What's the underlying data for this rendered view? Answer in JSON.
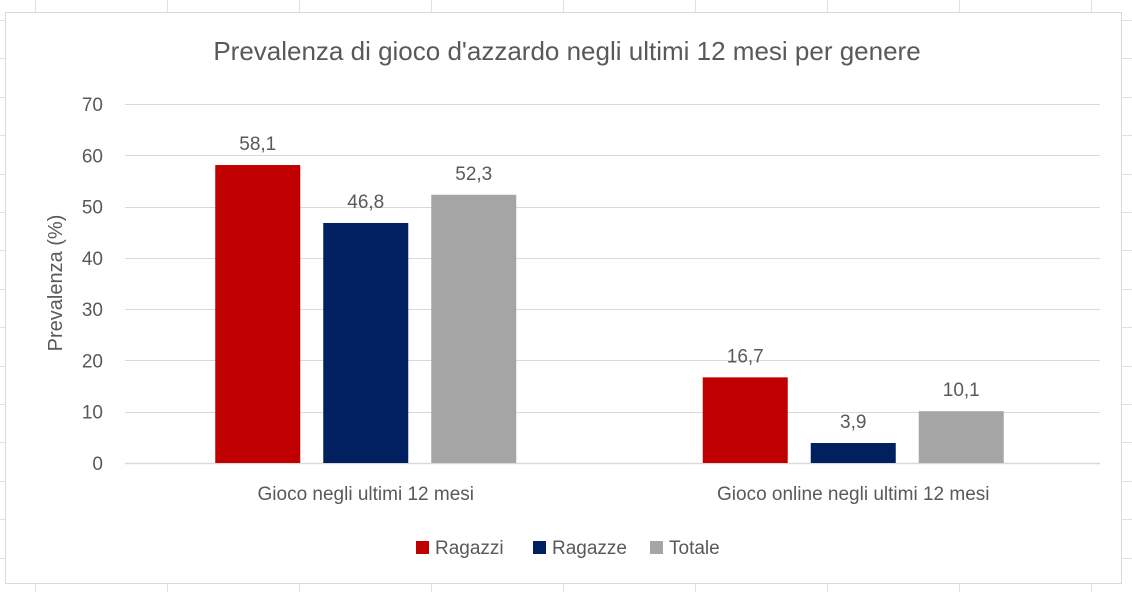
{
  "chart_data": {
    "type": "bar",
    "title": "Prevalenza di gioco d'azzardo negli ultimi 12 mesi per genere",
    "xlabel": "",
    "ylabel": "Prevalenza (%)",
    "ylim": [
      0,
      70
    ],
    "yticks": [
      0,
      10,
      20,
      30,
      40,
      50,
      60,
      70
    ],
    "grid": true,
    "legend_position": "bottom",
    "categories": [
      "Gioco negli ultimi 12 mesi",
      "Gioco online negli ultimi 12 mesi"
    ],
    "series": [
      {
        "name": "Ragazzi",
        "color": "#C00000",
        "values": [
          58.1,
          16.7
        ],
        "labels": [
          "58,1",
          "16,7"
        ]
      },
      {
        "name": "Ragazze",
        "color": "#002060",
        "values": [
          46.8,
          3.9
        ],
        "labels": [
          "46,8",
          "3,9"
        ]
      },
      {
        "name": "Totale",
        "color": "#A5A5A5",
        "values": [
          52.3,
          10.1
        ],
        "labels": [
          "52,3",
          "10,1"
        ]
      }
    ]
  }
}
